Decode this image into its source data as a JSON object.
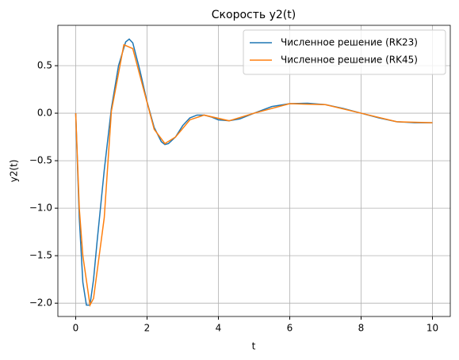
{
  "chart_data": {
    "type": "line",
    "title": "Скорость y2(t)",
    "x_label": "t",
    "y_label": "y2(t)",
    "series": [
      {
        "name": "Численное решение (RK23)",
        "color": "#1f77b4",
        "x": [
          0,
          0.1,
          0.2,
          0.3,
          0.4,
          0.5,
          0.6,
          0.8,
          1.0,
          1.2,
          1.4,
          1.5,
          1.6,
          1.8,
          2.0,
          2.2,
          2.4,
          2.5,
          2.6,
          2.8,
          3.0,
          3.2,
          3.4,
          3.6,
          3.8,
          4.0,
          4.3,
          4.6,
          5.0,
          5.5,
          6.0,
          6.5,
          7.0,
          7.5,
          8.0,
          8.5,
          9.0,
          9.5,
          10.0
        ],
        "values": [
          0,
          -1.1,
          -1.78,
          -2.02,
          -2.02,
          -1.75,
          -1.35,
          -0.6,
          0.05,
          0.5,
          0.75,
          0.78,
          0.74,
          0.45,
          0.12,
          -0.15,
          -0.3,
          -0.33,
          -0.32,
          -0.25,
          -0.13,
          -0.05,
          -0.02,
          -0.02,
          -0.04,
          -0.07,
          -0.08,
          -0.06,
          0.0,
          0.07,
          0.1,
          0.105,
          0.09,
          0.05,
          0.0,
          -0.05,
          -0.09,
          -0.1,
          -0.1
        ]
      },
      {
        "name": "Численное решение (RK45)",
        "color": "#ff7f0e",
        "x": [
          0,
          0.1,
          0.2,
          0.4,
          0.5,
          0.8,
          1.0,
          1.35,
          1.6,
          2.2,
          2.5,
          2.8,
          3.2,
          3.6,
          4.3,
          5.0,
          6.0,
          7.0,
          8.0,
          9.0,
          10.0
        ],
        "values": [
          0,
          -1.0,
          -1.5,
          -2.02,
          -1.95,
          -1.1,
          0.02,
          0.72,
          0.68,
          -0.17,
          -0.32,
          -0.25,
          -0.07,
          -0.02,
          -0.08,
          0.0,
          0.1,
          0.09,
          0.0,
          -0.09,
          -0.1
        ]
      }
    ],
    "xlim": [
      -0.5,
      10.5
    ],
    "xticks": [
      0,
      2,
      4,
      6,
      8,
      10
    ],
    "ylim": [
      -2.14,
      0.925
    ],
    "yticks": [
      {
        "value": -2,
        "label": "−2.0"
      },
      {
        "value": -1.5,
        "label": "−1.5"
      },
      {
        "value": -1,
        "label": "−1.0"
      },
      {
        "value": -0.5,
        "label": "−0.5"
      },
      {
        "value": 0,
        "label": "0.0"
      },
      0.5
    ],
    "grid": true,
    "legend": "upper right"
  }
}
